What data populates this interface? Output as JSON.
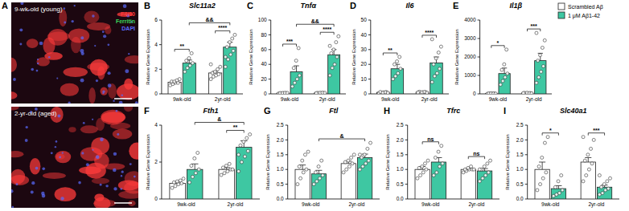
{
  "images": {
    "panel": "A",
    "labels": [
      "9-wk-old (young)",
      "2-yr-old (aged)"
    ],
    "stains": [
      {
        "name": "F4/80",
        "color": "#ff3b3b"
      },
      {
        "name": "Ferritin",
        "color": "#3bd65a"
      },
      {
        "name": "DAPI",
        "color": "#5a6bff"
      }
    ]
  },
  "chart_data": [
    {
      "type": "bar",
      "panel": "B",
      "title": "Slc11a2",
      "y_label": "Relative Gene Expression",
      "categories": [
        "9wk-old",
        "2yr-old"
      ],
      "ylim": [
        0,
        6
      ],
      "yticks": [
        0,
        2,
        4,
        6
      ],
      "series": [
        {
          "color": "#ffffff",
          "values": [
            0.95,
            1.7
          ],
          "errors": [
            0.06,
            0.13
          ],
          "points": [
            [
              0.7,
              0.8,
              0.9,
              0.9,
              1.0,
              1.0,
              1.1,
              1.2
            ],
            [
              1.2,
              1.4,
              1.5,
              1.6,
              1.7,
              1.8,
              2.0,
              2.2,
              2.4
            ]
          ]
        },
        {
          "color": "#3ec7a2",
          "values": [
            2.5,
            3.8
          ],
          "errors": [
            0.25,
            0.4
          ],
          "points": [
            [
              1.8,
              2.1,
              2.3,
              2.5,
              2.7,
              2.9,
              3.3
            ],
            [
              2.2,
              2.8,
              3.2,
              3.5,
              3.8,
              4.2,
              4.5,
              4.8,
              3.0
            ]
          ]
        }
      ],
      "annotations": [
        {
          "text": "**",
          "category": 0
        },
        {
          "text": "****",
          "category": 1
        },
        {
          "text": "&&",
          "series": 1
        }
      ]
    },
    {
      "type": "bar",
      "panel": "C",
      "title": "Tnfα",
      "y_label": "Relative Gene Expression",
      "categories": [
        "9wk-old",
        "2yr-old"
      ],
      "ylim": [
        0,
        100
      ],
      "yticks": [
        0,
        20,
        40,
        60,
        80,
        100
      ],
      "series": [
        {
          "color": "#ffffff",
          "values": [
            1.0,
            1.2
          ],
          "errors": [
            0.2,
            0.3
          ],
          "points": [
            [
              0.5,
              0.7,
              0.9,
              1.0,
              1.1,
              1.2,
              1.4,
              1.3
            ],
            [
              0.6,
              0.8,
              1.0,
              1.2,
              1.3,
              1.5,
              1.6,
              1.4,
              1.0
            ]
          ]
        },
        {
          "color": "#3ec7a2",
          "values": [
            30,
            53
          ],
          "errors": [
            8,
            7
          ],
          "points": [
            [
              10,
              15,
              20,
              25,
              35,
              45,
              62
            ],
            [
              25,
              35,
              40,
              50,
              55,
              60,
              70,
              78,
              65
            ]
          ]
        }
      ],
      "annotations": [
        {
          "text": "***",
          "category": 0
        },
        {
          "text": "****",
          "category": 1
        },
        {
          "text": "&&",
          "series": 1
        }
      ]
    },
    {
      "type": "bar",
      "panel": "D",
      "title": "Il6",
      "y_label": "Relative Gene Expression",
      "categories": [
        "9wk-old",
        "2yr-old"
      ],
      "ylim": [
        0,
        50
      ],
      "yticks": [
        0,
        10,
        20,
        30,
        40,
        50
      ],
      "series": [
        {
          "color": "#ffffff",
          "values": [
            1.0,
            1.1
          ],
          "errors": [
            0.2,
            0.2
          ],
          "points": [
            [
              0.5,
              0.8,
              1.0,
              1.2,
              1.3,
              0.9,
              1.1,
              0.7
            ],
            [
              0.6,
              0.9,
              1.0,
              1.2,
              1.4,
              1.1,
              1.3,
              0.8,
              1.0
            ]
          ]
        },
        {
          "color": "#3ec7a2",
          "values": [
            17,
            21
          ],
          "errors": [
            3,
            4
          ],
          "points": [
            [
              10,
              12,
              14,
              17,
              20,
              22,
              25
            ],
            [
              8,
              12,
              14,
              17,
              20,
              24,
              28,
              32,
              37
            ]
          ]
        }
      ],
      "annotations": [
        {
          "text": "**",
          "category": 0
        },
        {
          "text": "****",
          "category": 1
        }
      ]
    },
    {
      "type": "bar",
      "panel": "E",
      "title": "Il1β",
      "y_label": "Relative Gene Expression",
      "categories": [
        "9wk-old",
        "2yr-old"
      ],
      "ylim": [
        0,
        4000
      ],
      "yticks": [
        0,
        1000,
        2000,
        3000,
        4000
      ],
      "legend": "top-right",
      "series": [
        {
          "name": "Scrambled Aβ",
          "color": "#ffffff",
          "values": [
            20,
            40
          ],
          "errors": [
            5,
            10
          ],
          "points": [
            [
              5,
              10,
              15,
              20,
              25,
              30,
              20,
              15
            ],
            [
              10,
              20,
              30,
              40,
              50,
              60,
              40,
              35,
              45
            ]
          ]
        },
        {
          "name": "1 μM Aβ1-42",
          "color": "#3ec7a2",
          "values": [
            1100,
            1800
          ],
          "errors": [
            300,
            400
          ],
          "points": [
            [
              500,
              700,
              900,
              1100,
              1300,
              1600,
              2400
            ],
            [
              600,
              900,
              1200,
              1500,
              1800,
              2100,
              2500,
              2900,
              3300
            ]
          ]
        }
      ],
      "annotations": [
        {
          "text": "*",
          "category": 0
        },
        {
          "text": "***",
          "category": 1
        }
      ]
    },
    {
      "type": "bar",
      "panel": "F",
      "title": "Fth1",
      "y_label": "Relative Gene Expression",
      "categories": [
        "9wk-old",
        "2yr-old"
      ],
      "ylim": [
        0,
        4
      ],
      "yticks": [
        0,
        2,
        4
      ],
      "series": [
        {
          "color": "#ffffff",
          "values": [
            0.85,
            1.6
          ],
          "errors": [
            0.07,
            0.1
          ],
          "points": [
            [
              0.6,
              0.7,
              0.8,
              0.85,
              0.9,
              0.95,
              1.0,
              1.1
            ],
            [
              1.3,
              1.4,
              1.5,
              1.6,
              1.7,
              1.8,
              1.9,
              1.6
            ]
          ]
        },
        {
          "color": "#3ec7a2",
          "values": [
            1.6,
            2.8
          ],
          "errors": [
            0.3,
            0.35
          ],
          "points": [
            [
              0.9,
              1.2,
              1.4,
              1.6,
              1.8,
              2.2,
              2.5
            ],
            [
              1.5,
              2.0,
              2.3,
              2.6,
              2.9,
              3.1,
              3.3,
              3.5,
              2.4
            ]
          ]
        }
      ],
      "annotations": [
        {
          "text": "**",
          "category": 1
        },
        {
          "text": "&",
          "series": 1
        }
      ]
    },
    {
      "type": "bar",
      "panel": "G",
      "title": "Ftl",
      "y_label": "Relative Gene Expression",
      "categories": [
        "9wk-old",
        "2yr-old"
      ],
      "ylim": [
        0,
        2.5
      ],
      "yticks": [
        {
          "value": 0,
          "label": "0.0"
        },
        {
          "value": 0.5,
          "label": "0.5"
        },
        {
          "value": 1,
          "label": "1.0"
        },
        {
          "value": 1.5,
          "label": "1.5"
        },
        {
          "value": 2,
          "label": "2.0"
        },
        {
          "value": 2.5,
          "label": "2.5"
        }
      ],
      "series": [
        {
          "color": "#ffffff",
          "values": [
            1.0,
            1.2
          ],
          "errors": [
            0.15,
            0.08
          ],
          "points": [
            [
              0.5,
              0.7,
              0.9,
              1.0,
              1.1,
              1.3,
              1.5,
              1.6
            ],
            [
              0.9,
              1.0,
              1.1,
              1.2,
              1.25,
              1.3,
              1.4,
              1.5
            ]
          ]
        },
        {
          "color": "#3ec7a2",
          "values": [
            0.85,
            1.4
          ],
          "errors": [
            0.12,
            0.12
          ],
          "points": [
            [
              0.5,
              0.6,
              0.7,
              0.8,
              0.9,
              1.1,
              1.3
            ],
            [
              1.0,
              1.1,
              1.2,
              1.3,
              1.4,
              1.5,
              1.7,
              1.9,
              1.5
            ]
          ]
        }
      ],
      "annotations": [
        {
          "text": "&",
          "series": 1
        }
      ]
    },
    {
      "type": "bar",
      "panel": "H",
      "title": "Tfrc",
      "y_label": "Relative Gene Expression",
      "categories": [
        "9wk-old",
        "2yr-old"
      ],
      "ylim": [
        0,
        2.5
      ],
      "yticks": [
        {
          "value": 0,
          "label": "0.0"
        },
        {
          "value": 0.5,
          "label": "0.5"
        },
        {
          "value": 1,
          "label": "1.0"
        },
        {
          "value": 1.5,
          "label": "1.5"
        },
        {
          "value": 2,
          "label": "2.0"
        },
        {
          "value": 2.5,
          "label": "2.5"
        }
      ],
      "series": [
        {
          "color": "#ffffff",
          "values": [
            1.0,
            1.0
          ],
          "errors": [
            0.1,
            0.03
          ],
          "points": [
            [
              0.7,
              0.8,
              0.9,
              1.0,
              1.05,
              1.1,
              1.2,
              1.3
            ],
            [
              0.9,
              0.95,
              1.0,
              1.0,
              1.0,
              1.05,
              1.1,
              1.0
            ]
          ]
        },
        {
          "color": "#3ec7a2",
          "values": [
            1.25,
            0.95
          ],
          "errors": [
            0.15,
            0.08
          ],
          "points": [
            [
              0.8,
              0.9,
              1.1,
              1.2,
              1.4,
              1.6,
              1.8
            ],
            [
              0.6,
              0.7,
              0.8,
              0.9,
              1.0,
              1.1,
              1.2,
              1.3,
              1.0
            ]
          ]
        }
      ],
      "annotations": [
        {
          "text": "ns",
          "category": 0
        },
        {
          "text": "ns",
          "category": 1
        }
      ]
    },
    {
      "type": "bar",
      "panel": "I",
      "title": "Slc40a1",
      "y_label": "Relative Gene Expression",
      "categories": [
        "9wk-old",
        "2yr-old"
      ],
      "ylim": [
        0,
        2.5
      ],
      "yticks": [
        {
          "value": 0,
          "label": "0.0"
        },
        {
          "value": 0.5,
          "label": "0.5"
        },
        {
          "value": 1,
          "label": "1.0"
        },
        {
          "value": 1.5,
          "label": "1.5"
        },
        {
          "value": 2,
          "label": "2.0"
        },
        {
          "value": 2.5,
          "label": "2.5"
        }
      ],
      "series": [
        {
          "color": "#ffffff",
          "values": [
            1.0,
            1.25
          ],
          "errors": [
            0.25,
            0.15
          ],
          "points": [
            [
              0.3,
              0.5,
              0.7,
              0.9,
              1.1,
              1.4,
              1.9,
              2.1
            ],
            [
              0.6,
              0.8,
              1.0,
              1.2,
              1.3,
              1.5,
              1.7,
              2.0,
              2.1
            ]
          ]
        },
        {
          "color": "#3ec7a2",
          "values": [
            0.35,
            0.4
          ],
          "errors": [
            0.1,
            0.07
          ],
          "points": [
            [
              0.1,
              0.15,
              0.2,
              0.3,
              0.4,
              0.6,
              0.8
            ],
            [
              0.15,
              0.2,
              0.3,
              0.35,
              0.4,
              0.5,
              0.6,
              0.7,
              0.8
            ]
          ]
        }
      ],
      "annotations": [
        {
          "text": "*",
          "category": 0
        },
        {
          "text": "***",
          "category": 1
        }
      ]
    }
  ]
}
